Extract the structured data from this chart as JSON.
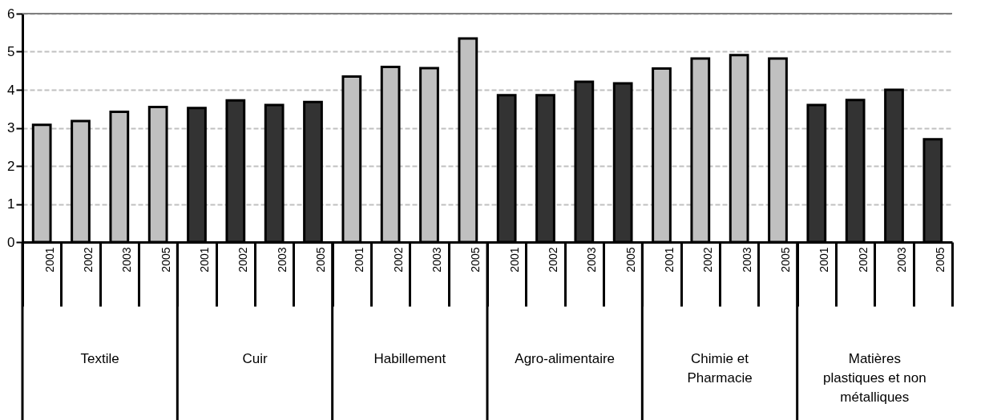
{
  "chart_data": {
    "type": "bar",
    "categories": [
      "2001",
      "2002",
      "2003",
      "2005",
      "2001",
      "2002",
      "2003",
      "2005",
      "2001",
      "2002",
      "2003",
      "2005",
      "2001",
      "2002",
      "2003",
      "2005",
      "2001",
      "2002",
      "2003",
      "2005",
      "2001",
      "2002",
      "2003",
      "2005"
    ],
    "values": [
      3.08,
      3.18,
      3.42,
      3.55,
      3.52,
      3.72,
      3.6,
      3.68,
      4.35,
      4.6,
      4.57,
      5.35,
      3.86,
      3.86,
      4.21,
      4.17,
      4.56,
      4.82,
      4.91,
      4.82,
      3.6,
      3.73,
      4.0,
      2.7
    ],
    "colors": [
      "#c0c0c0",
      "#c0c0c0",
      "#c0c0c0",
      "#c0c0c0",
      "#333333",
      "#333333",
      "#333333",
      "#333333",
      "#c0c0c0",
      "#c0c0c0",
      "#c0c0c0",
      "#c0c0c0",
      "#333333",
      "#333333",
      "#333333",
      "#333333",
      "#c0c0c0",
      "#c0c0c0",
      "#c0c0c0",
      "#c0c0c0",
      "#333333",
      "#333333",
      "#333333",
      "#333333"
    ],
    "annotations": [
      "Textile",
      "Cuir",
      "Habillement",
      "Agro-alimentaire",
      "Chimie et Pharmacie",
      "Matières plastiques et non métalliques"
    ],
    "ylim": [
      0,
      6
    ],
    "yticks": [
      0,
      1,
      2,
      3,
      4,
      5,
      6
    ],
    "grid": true,
    "line_style": "dashed"
  }
}
